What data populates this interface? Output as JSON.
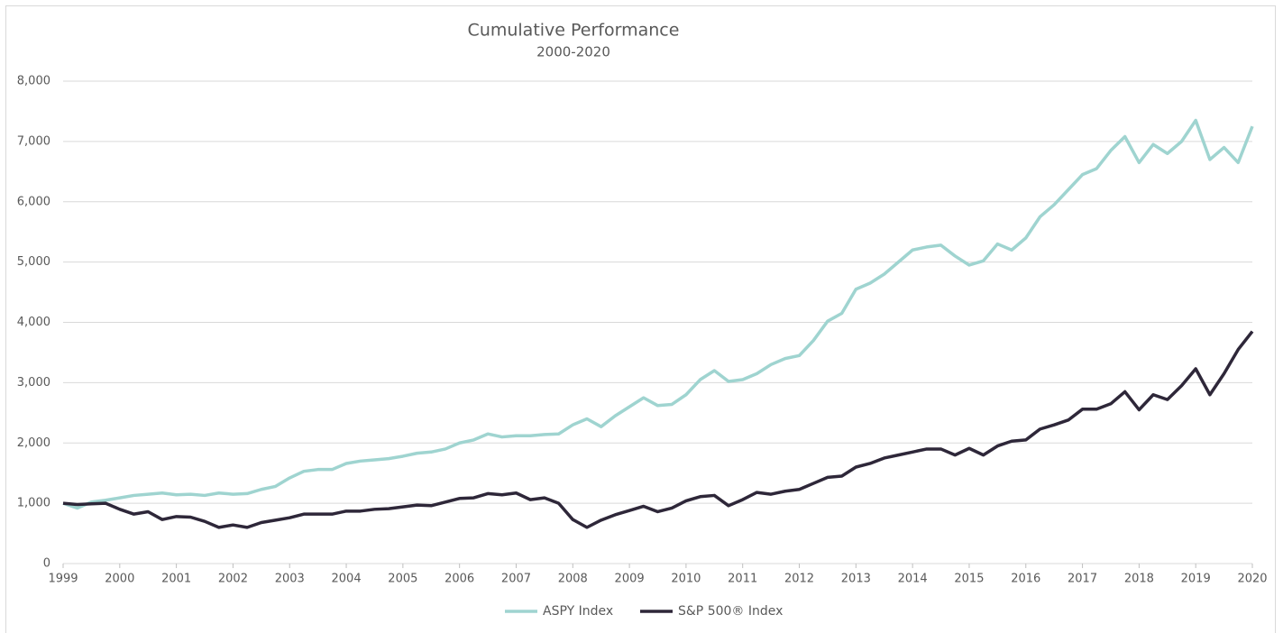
{
  "chart_data": {
    "type": "line",
    "title": "Cumulative Performance",
    "subtitle": "2000-2020",
    "x": [
      1999,
      1999.25,
      1999.5,
      1999.75,
      2000,
      2000.25,
      2000.5,
      2000.75,
      2001,
      2001.25,
      2001.5,
      2001.75,
      2002,
      2002.25,
      2002.5,
      2002.75,
      2003,
      2003.25,
      2003.5,
      2003.75,
      2004,
      2004.25,
      2004.5,
      2004.75,
      2005,
      2005.25,
      2005.5,
      2005.75,
      2006,
      2006.25,
      2006.5,
      2006.75,
      2007,
      2007.25,
      2007.5,
      2007.75,
      2008,
      2008.25,
      2008.5,
      2008.75,
      2009,
      2009.25,
      2009.5,
      2009.75,
      2010,
      2010.25,
      2010.5,
      2010.75,
      2011,
      2011.25,
      2011.5,
      2011.75,
      2012,
      2012.25,
      2012.5,
      2012.75,
      2013,
      2013.25,
      2013.5,
      2013.75,
      2014,
      2014.25,
      2014.5,
      2014.75,
      2015,
      2015.25,
      2015.5,
      2015.75,
      2016,
      2016.25,
      2016.5,
      2016.75,
      2017,
      2017.25,
      2017.5,
      2017.75,
      2018,
      2018.25,
      2018.5,
      2018.75,
      2019,
      2019.25,
      2019.5,
      2019.75,
      2020
    ],
    "series": [
      {
        "name": "ASPY Index",
        "color": "#9fd4d0",
        "values": [
          1000,
          920,
          1020,
          1050,
          1090,
          1130,
          1150,
          1170,
          1140,
          1150,
          1130,
          1170,
          1150,
          1160,
          1230,
          1280,
          1420,
          1530,
          1560,
          1560,
          1660,
          1700,
          1720,
          1740,
          1780,
          1830,
          1850,
          1900,
          2000,
          2050,
          2150,
          2100,
          2120,
          2120,
          2140,
          2150,
          2300,
          2400,
          2270,
          2450,
          2600,
          2750,
          2620,
          2640,
          2800,
          3050,
          3200,
          3020,
          3050,
          3150,
          3300,
          3400,
          3450,
          3700,
          4020,
          4150,
          4550,
          4650,
          4800,
          5000,
          5200,
          5250,
          5280,
          5100,
          4950,
          5020,
          5300,
          5200,
          5400,
          5750,
          5950,
          6200,
          6450,
          6550,
          6850,
          7080,
          6650,
          6950,
          6800,
          7000,
          7350,
          6700,
          6900,
          6650,
          7250
        ]
      },
      {
        "name": "S&P 500® Index",
        "color": "#2e2739",
        "values": [
          1000,
          980,
          990,
          1000,
          900,
          820,
          860,
          730,
          780,
          770,
          700,
          600,
          640,
          600,
          680,
          720,
          760,
          820,
          820,
          820,
          870,
          870,
          900,
          910,
          940,
          970,
          960,
          1020,
          1080,
          1090,
          1160,
          1140,
          1170,
          1060,
          1090,
          1000,
          730,
          600,
          720,
          810,
          880,
          950,
          860,
          920,
          1040,
          1110,
          1130,
          960,
          1060,
          1180,
          1150,
          1200,
          1230,
          1330,
          1430,
          1450,
          1600,
          1660,
          1750,
          1800,
          1850,
          1900,
          1900,
          1800,
          1910,
          1800,
          1950,
          2030,
          2050,
          2230,
          2300,
          2380,
          2560,
          2560,
          2650,
          2850,
          2550,
          2800,
          2720,
          2950,
          3230,
          2800,
          3150,
          3550,
          3850
        ]
      }
    ],
    "xlim": [
      1999,
      2020
    ],
    "xticks": [
      1999,
      2000,
      2001,
      2002,
      2003,
      2004,
      2005,
      2006,
      2007,
      2008,
      2009,
      2010,
      2011,
      2012,
      2013,
      2014,
      2015,
      2016,
      2017,
      2018,
      2019,
      2020
    ],
    "ylim": [
      0,
      8000
    ],
    "yticks": [
      0,
      {
        "value": 1000,
        "label": "1,000"
      },
      {
        "value": 2000,
        "label": "2,000"
      },
      {
        "value": 3000,
        "label": "3,000"
      },
      {
        "value": 4000,
        "label": "4,000"
      },
      {
        "value": 5000,
        "label": "5,000"
      },
      {
        "value": 6000,
        "label": "6,000"
      },
      {
        "value": 7000,
        "label": "7,000"
      },
      {
        "value": 8000,
        "label": "8,000"
      }
    ],
    "grid": true,
    "legend": "bottom"
  }
}
